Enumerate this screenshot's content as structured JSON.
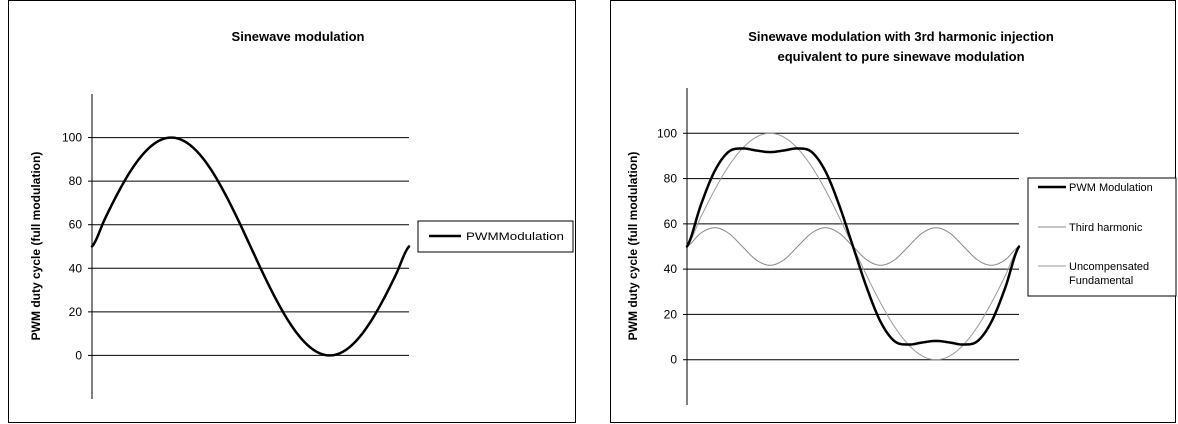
{
  "chart_data": [
    {
      "type": "line",
      "title": "Sinewave modulation",
      "ylabel": "PWM duty cycle (full modulation)",
      "xlabel": "",
      "ylim": [
        -20,
        120
      ],
      "yticks": [
        "0",
        "20",
        "40",
        "60",
        "80",
        "100"
      ],
      "grid": "horizontal",
      "legend_placement": "right",
      "x": [
        0,
        0.0417,
        0.0833,
        0.125,
        0.1667,
        0.2083,
        0.25,
        0.2917,
        0.3333,
        0.375,
        0.4167,
        0.4583,
        0.5,
        0.5417,
        0.5833,
        0.625,
        0.6667,
        0.7083,
        0.75,
        0.7917,
        0.8333,
        0.875,
        0.9167,
        0.9583,
        1
      ],
      "series": [
        {
          "name": "PWMModulation",
          "color": "#000000",
          "values": [
            50,
            63,
            75,
            85.4,
            93.3,
            98.3,
            100,
            98.3,
            93.3,
            85.4,
            75,
            63,
            50,
            37,
            25,
            14.6,
            6.7,
            1.7,
            0,
            1.7,
            6.7,
            14.6,
            25,
            37,
            50
          ]
        }
      ]
    },
    {
      "type": "line",
      "title": "Sinewave modulation with 3rd harmonic injection equivalent to pure sinewave modulation",
      "title_lines": [
        "Sinewave modulation with 3rd harmonic injection",
        "equivalent to pure sinewave modulation"
      ],
      "ylabel": "PWM duty cycle (full modulation)",
      "xlabel": "",
      "ylim": [
        -20,
        120
      ],
      "yticks": [
        "0",
        "20",
        "40",
        "60",
        "80",
        "100"
      ],
      "grid": "horizontal",
      "legend_placement": "right",
      "x": [
        0,
        0.0417,
        0.0833,
        0.125,
        0.1667,
        0.2083,
        0.25,
        0.2917,
        0.3333,
        0.375,
        0.4167,
        0.4583,
        0.5,
        0.5417,
        0.5833,
        0.625,
        0.6667,
        0.7083,
        0.75,
        0.7917,
        0.8333,
        0.875,
        0.9167,
        0.9583,
        1
      ],
      "series": [
        {
          "name": "PWM Modulation",
          "color": "#000000",
          "values": [
            50,
            68.3,
            83.3,
            91.8,
            93.3,
            92.4,
            91.7,
            92.4,
            93.3,
            91.8,
            83.3,
            68.3,
            50,
            31.7,
            16.7,
            8.2,
            6.7,
            7.6,
            8.3,
            7.6,
            6.7,
            8.2,
            16.7,
            31.7,
            50
          ]
        },
        {
          "name": "Third harmonic",
          "color": "#888888",
          "values": [
            50,
            55.9,
            58.3,
            55.9,
            50,
            44.1,
            41.7,
            44.1,
            50,
            55.9,
            58.3,
            55.9,
            50,
            44.1,
            41.7,
            44.1,
            50,
            55.9,
            58.3,
            55.9,
            50,
            44.1,
            41.7,
            44.1,
            50
          ]
        },
        {
          "name": "Uncompensated Fundamental",
          "legend_lines": [
            "Uncompensated",
            "Fundamental"
          ],
          "color": "#9a9a9a",
          "values": [
            50,
            63,
            75,
            85.4,
            93.3,
            98.3,
            100,
            98.3,
            93.3,
            85.4,
            75,
            63,
            50,
            37,
            25,
            14.6,
            6.7,
            1.7,
            0,
            1.7,
            6.7,
            14.6,
            25,
            37,
            50
          ]
        }
      ]
    }
  ]
}
